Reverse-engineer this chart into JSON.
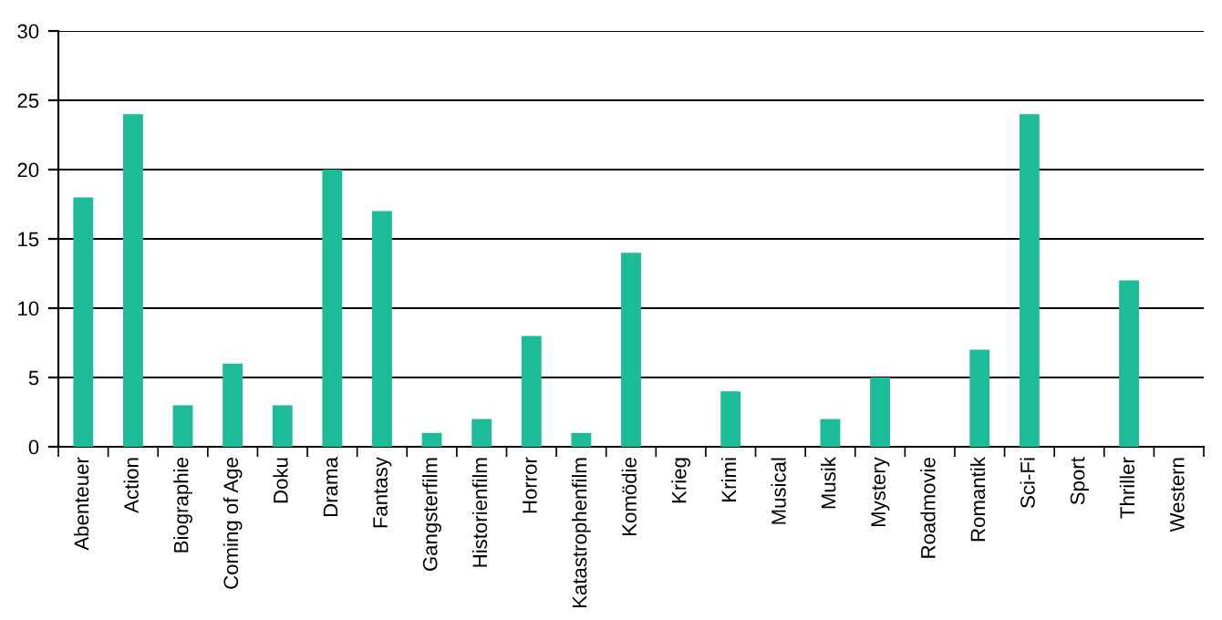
{
  "chart_data": {
    "type": "bar",
    "categories": [
      "Abenteuer",
      "Action",
      "Biographie",
      "Coming of Age",
      "Doku",
      "Drama",
      "Fantasy",
      "Gangsterfilm",
      "Historienfilm",
      "Horror",
      "Katastrophenfilm",
      "Komödie",
      "Krieg",
      "Krimi",
      "Musical",
      "Musik",
      "Mystery",
      "Roadmovie",
      "Romantik",
      "Sci-Fi",
      "Sport",
      "Thriller",
      "Western"
    ],
    "values": [
      18,
      24,
      3,
      6,
      3,
      20,
      17,
      1,
      2,
      8,
      1,
      14,
      0,
      4,
      0,
      2,
      5,
      0,
      7,
      24,
      0,
      12,
      0
    ],
    "color": "#1bbc97",
    "ylim": [
      0,
      30
    ],
    "yticks": [
      0,
      5,
      10,
      15,
      20,
      25,
      30
    ],
    "grid": "y",
    "legend": false
  }
}
